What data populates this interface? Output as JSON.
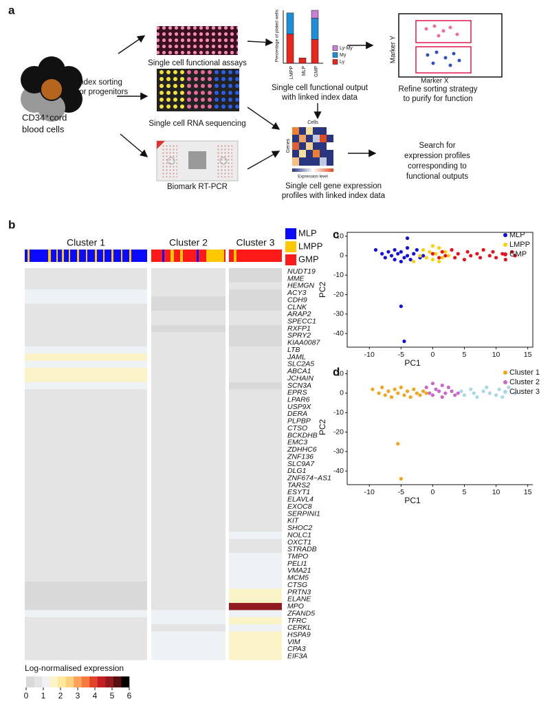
{
  "panel_a": {
    "label": "a",
    "source": [
      "CD34⁺cord",
      "blood cells"
    ],
    "sorting": [
      "Index sorting",
      "for progenitors"
    ],
    "assays": [
      "Single cell functional assays",
      "Single cell RNA sequencing",
      "Biomark RT-PCR"
    ],
    "functional_output": [
      "Single cell functional output",
      "with linked index data"
    ],
    "marker_y": "Marker Y",
    "marker_x": "Marker X",
    "refine": [
      "Refine sorting strategy",
      "to purify for function"
    ],
    "mini_heatmap": {
      "cells": "Cells",
      "genes": "Genes",
      "scale": "Expression level"
    },
    "expression_profiles": [
      "Single cell gene expression",
      "profiles with linked index data"
    ],
    "search": [
      "Search for",
      "expression profiles",
      "corresponding to",
      "functional outputs"
    ]
  },
  "chart_data": [
    {
      "type": "bar",
      "stacked": true,
      "ylabel": "Percentage of plated wells",
      "categories": [
        "LMPP",
        "MLP",
        "GMP"
      ],
      "ylim": [
        0,
        100
      ],
      "series": [
        {
          "name": "Ly",
          "color": "#e8261d",
          "values": [
            55,
            10,
            45
          ]
        },
        {
          "name": "My",
          "color": "#1c8fd6",
          "values": [
            40,
            0,
            40
          ]
        },
        {
          "name": "Ly-My",
          "color": "#c97fd6",
          "values": [
            0,
            0,
            15
          ]
        }
      ]
    },
    {
      "type": "heatmap",
      "label": "b",
      "columns": [
        "Cluster 1",
        "Cluster 2",
        "Cluster 3"
      ],
      "legend": [
        {
          "name": "MLP",
          "color": "#0a0aff"
        },
        {
          "name": "LMPP",
          "color": "#ffc800"
        },
        {
          "name": "GMP",
          "color": "#ff1a1a"
        }
      ],
      "rows": [
        "NUDT19",
        "MME",
        "HEMGN",
        "ACY3",
        "CDH9",
        "CLNK",
        "ARAP2",
        "SPECC1",
        "RXFP1",
        "SPRY2",
        "KIAA0087",
        "LTB",
        "JAML",
        "SLC2A5",
        "ABCA1",
        "JCHAIN",
        "SCN3A",
        "EPRS",
        "LPAR6",
        "USP9X",
        "DERA",
        "PLPBP",
        "CTSO",
        "BCKDHB",
        "EMC3",
        "ZDHHC6",
        "ZNF136",
        "SLC9A7",
        "DLG1",
        "ZNF674−AS1",
        "TARS2",
        "ESYT1",
        "ELAVL4",
        "EXOC8",
        "SERPINI1",
        "KIT",
        "SHOC2",
        "NOLC1",
        "OXCT1",
        "STRADB",
        "TMPO",
        "PELI1",
        "VMA21",
        "MCM5",
        "CTSG",
        "PRTN3",
        "ELANE",
        "MPO",
        "ZFAND5",
        "TFRC",
        "CERKL",
        "HSPA9",
        "VIM",
        "CPA3",
        "EIF3A"
      ],
      "values": [
        [
          0.5,
          0.3,
          0.2
        ],
        [
          0.6,
          0.3,
          0.2
        ],
        [
          0.7,
          0.3,
          0.3
        ],
        [
          0.8,
          0.3,
          0.2
        ],
        [
          0.8,
          0.2,
          0.2
        ],
        [
          0.7,
          0.2,
          0.2
        ],
        [
          0.7,
          0.4,
          0.3
        ],
        [
          0.6,
          0.4,
          0.3
        ],
        [
          0.5,
          0.2,
          0.2
        ],
        [
          0.6,
          0.3,
          0.2
        ],
        [
          0.5,
          0.3,
          0.2
        ],
        [
          0.8,
          0.4,
          0.3
        ],
        [
          1.3,
          0.6,
          0.4
        ],
        [
          1.1,
          0.5,
          0.3
        ],
        [
          1.4,
          0.5,
          0.3
        ],
        [
          1.5,
          0.4,
          0.3
        ],
        [
          0.9,
          0.3,
          0.2
        ],
        [
          0.5,
          0.5,
          0.5
        ],
        [
          0.5,
          0.4,
          0.3
        ],
        [
          0.5,
          0.5,
          0.4
        ],
        [
          0.4,
          0.5,
          0.5
        ],
        [
          0.4,
          0.5,
          0.5
        ],
        [
          0.4,
          0.6,
          0.5
        ],
        [
          0.4,
          0.5,
          0.4
        ],
        [
          0.5,
          0.6,
          0.6
        ],
        [
          0.4,
          0.5,
          0.5
        ],
        [
          0.4,
          0.4,
          0.4
        ],
        [
          0.4,
          0.4,
          0.4
        ],
        [
          0.4,
          0.5,
          0.5
        ],
        [
          0.4,
          0.5,
          0.5
        ],
        [
          0.3,
          0.5,
          0.6
        ],
        [
          0.3,
          0.5,
          0.6
        ],
        [
          0.3,
          0.4,
          0.5
        ],
        [
          0.3,
          0.4,
          0.5
        ],
        [
          0.3,
          0.4,
          0.5
        ],
        [
          0.3,
          0.5,
          0.7
        ],
        [
          0.3,
          0.5,
          0.6
        ],
        [
          0.3,
          0.6,
          0.8
        ],
        [
          0.3,
          0.5,
          0.7
        ],
        [
          0.3,
          0.5,
          0.7
        ],
        [
          0.3,
          0.6,
          0.9
        ],
        [
          0.3,
          0.6,
          0.9
        ],
        [
          0.3,
          0.6,
          0.9
        ],
        [
          0.3,
          0.5,
          0.9
        ],
        [
          0.2,
          0.3,
          1.0
        ],
        [
          0.2,
          0.3,
          1.3
        ],
        [
          0.2,
          0.3,
          1.6
        ],
        [
          0.2,
          0.3,
          5.0
        ],
        [
          1.0,
          0.8,
          1.2
        ],
        [
          0.5,
          0.8,
          1.4
        ],
        [
          0.5,
          0.7,
          1.2
        ],
        [
          0.5,
          0.8,
          1.4
        ],
        [
          0.5,
          1.0,
          1.6
        ],
        [
          0.4,
          0.9,
          1.5
        ],
        [
          0.6,
          0.9,
          1.4
        ]
      ],
      "colorbar": {
        "title": "Log-normalised expression",
        "lim": [
          0,
          6
        ],
        "ticks": [
          0,
          1,
          2,
          3,
          4,
          5,
          6
        ],
        "colors": [
          "#d9d9d9",
          "#e4e4e4",
          "#eef2f4",
          "#fbf3c8",
          "#fde8a0",
          "#fbd080",
          "#f9a35a",
          "#f47a3e",
          "#e0422a",
          "#c41f22",
          "#901a1e",
          "#5a0f12",
          "#000000"
        ]
      }
    },
    {
      "type": "scatter",
      "label": "c",
      "xlabel": "PC1",
      "ylabel": "PC2",
      "xlim": [
        -13.5,
        15.8
      ],
      "ylim": [
        -47,
        12
      ],
      "xticks": [
        -10,
        -5,
        0,
        5,
        10,
        15
      ],
      "yticks": [
        10,
        0,
        -10,
        -20,
        -30,
        -40
      ],
      "series": [
        {
          "name": "MLP",
          "color": "#1010e0",
          "x": [
            -9,
            -8,
            -7.5,
            -7,
            -6.5,
            -6,
            -6,
            -5.5,
            -5,
            -5,
            -4.5,
            -4,
            -4,
            -3.5,
            -3,
            -2.5,
            -2,
            -1.5,
            -4,
            -5,
            -4.5
          ],
          "y": [
            3,
            1,
            -1,
            2,
            0,
            -2,
            3,
            1,
            -3,
            2,
            -1,
            4,
            0,
            -2,
            1,
            3,
            -1,
            0,
            9,
            -26,
            -44
          ]
        },
        {
          "name": "LMPP",
          "color": "#ffd000",
          "x": [
            -2,
            -1.5,
            -1,
            -0.5,
            0,
            0.5,
            1,
            1.5,
            2,
            2.5,
            -3,
            0,
            1
          ],
          "y": [
            0,
            3,
            -1,
            2,
            -2,
            1,
            4,
            -1,
            2,
            0,
            -3,
            5,
            -3
          ]
        },
        {
          "name": "GMP",
          "color": "#e8101a",
          "x": [
            0,
            1,
            1.5,
            2,
            3,
            3.5,
            4,
            5,
            5.5,
            6,
            7,
            7.5,
            8,
            9,
            9.5,
            10,
            11,
            11.5,
            12.5,
            13
          ],
          "y": [
            1,
            -1,
            2,
            0,
            3,
            -1,
            1,
            -2,
            2,
            0,
            1,
            -1,
            3,
            0,
            2,
            -1,
            1,
            -2,
            2,
            0
          ]
        }
      ]
    },
    {
      "type": "scatter",
      "label": "d",
      "xlabel": "PC1",
      "ylabel": "PC2",
      "xlim": [
        -13.5,
        15.8
      ],
      "ylim": [
        -47,
        12
      ],
      "xticks": [
        -10,
        -5,
        0,
        5,
        10,
        15
      ],
      "yticks": [
        10,
        0,
        -10,
        -20,
        -30,
        -40
      ],
      "series": [
        {
          "name": "Cluster 1",
          "color": "#f5a31a",
          "x": [
            -9.5,
            -8.5,
            -8,
            -7.5,
            -7,
            -6.5,
            -6,
            -5.5,
            -5,
            -4.5,
            -4,
            -3.5,
            -3,
            -2.5,
            -2,
            -1.5,
            -1,
            -5.5,
            -5
          ],
          "y": [
            2,
            0,
            3,
            -1,
            1,
            -2,
            2,
            0,
            3,
            -1,
            1,
            -2,
            2,
            0,
            -1,
            1,
            0,
            -26,
            -44
          ]
        },
        {
          "name": "Cluster 2",
          "color": "#cc66cc",
          "x": [
            -1,
            -0.5,
            0,
            0.5,
            1,
            1.5,
            2,
            2.5,
            3,
            3.5,
            4,
            0,
            1.5
          ],
          "y": [
            3,
            0,
            -1,
            2,
            1,
            -2,
            0,
            3,
            1,
            -1,
            0,
            5,
            4
          ]
        },
        {
          "name": "Cluster 3",
          "color": "#a8d8e8",
          "x": [
            4.5,
            5,
            6,
            6.5,
            7,
            8,
            8.5,
            9,
            10,
            10.5,
            11,
            12,
            13
          ],
          "y": [
            1,
            -1,
            2,
            0,
            -2,
            1,
            3,
            0,
            -1,
            2,
            -2,
            3,
            0
          ]
        }
      ]
    }
  ]
}
